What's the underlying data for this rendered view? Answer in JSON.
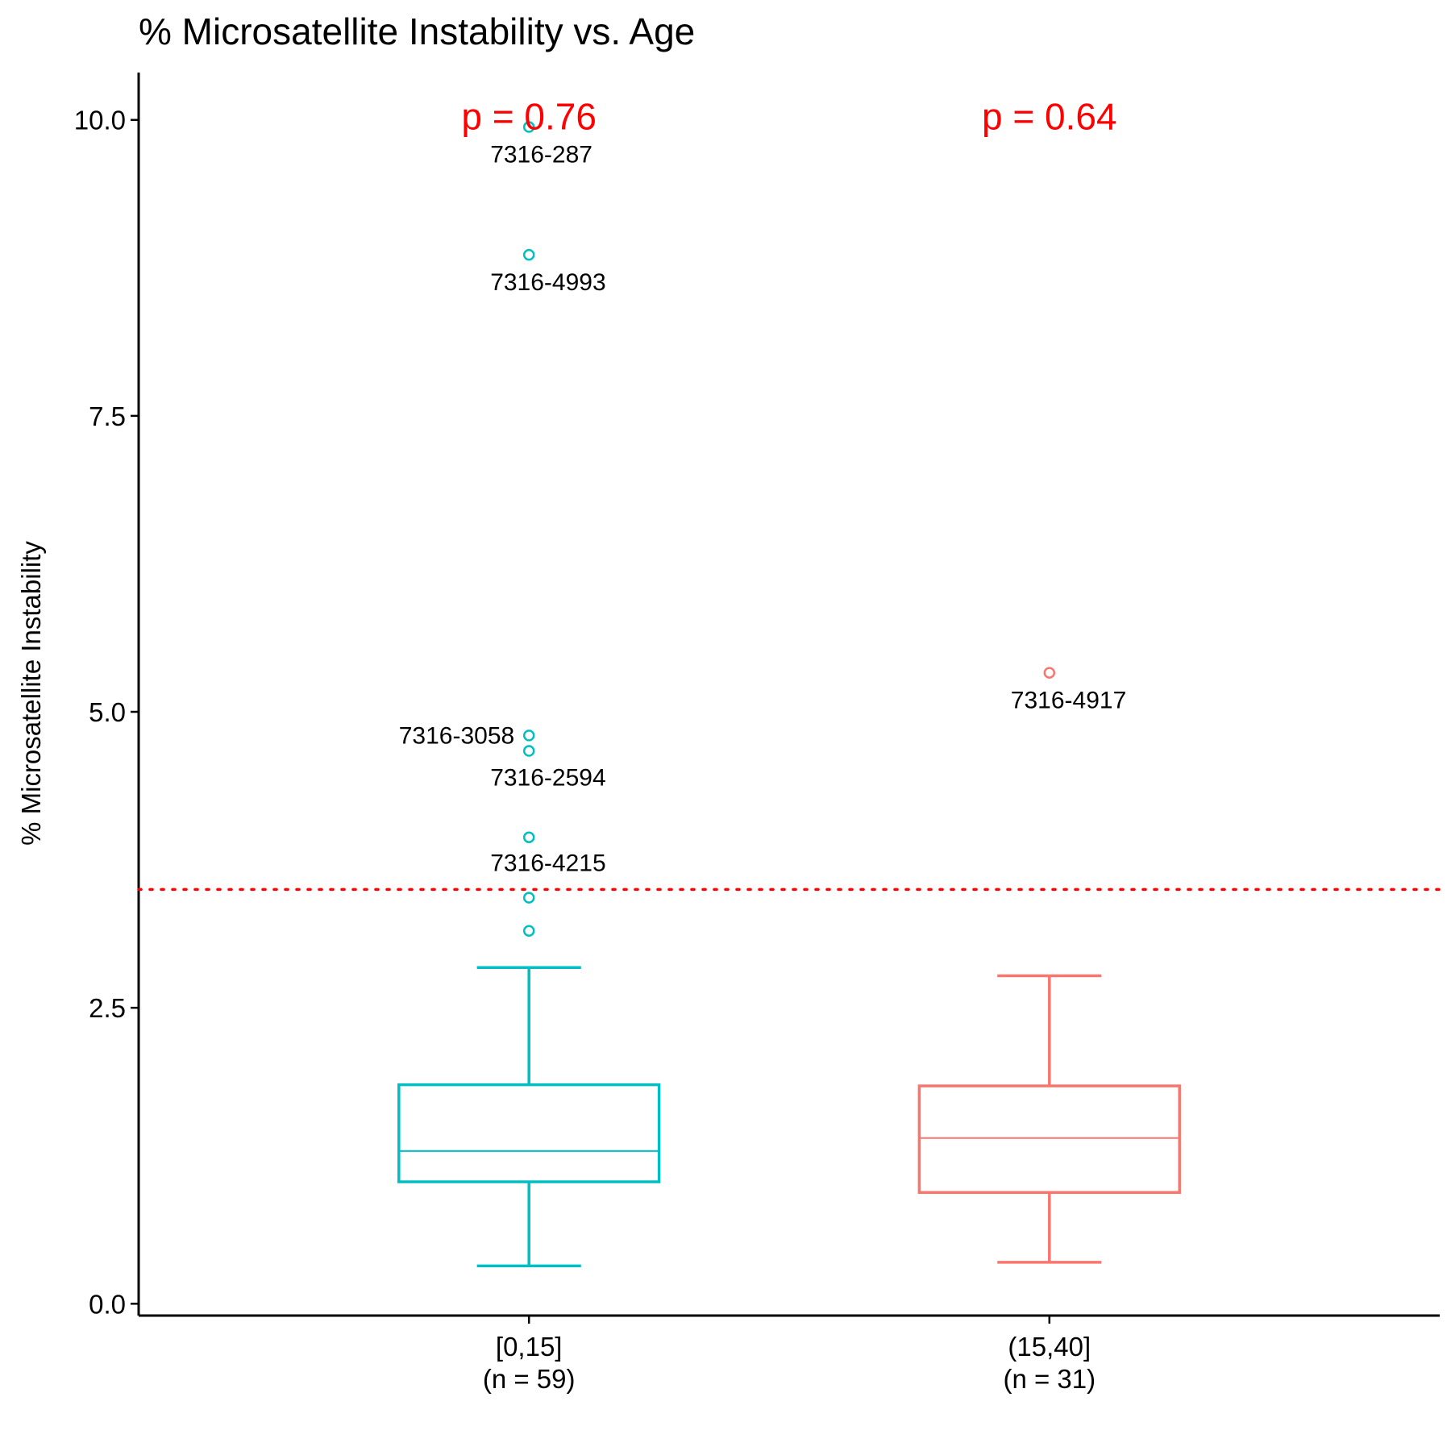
{
  "chart_data": {
    "type": "box",
    "title": "% Microsatellite Instability vs. Age",
    "xlabel": "",
    "ylabel": "% Microsatellite Instability",
    "ylim": [
      -0.1,
      10.4
    ],
    "yticks": [
      "0.0",
      "2.5",
      "5.0",
      "7.5",
      "10.0"
    ],
    "ytick_values": [
      0,
      2.5,
      5,
      7.5,
      10
    ],
    "grid": false,
    "legend": "none",
    "threshold": {
      "value": 3.5,
      "color": "#ff0000",
      "style": "dotted"
    },
    "groups": [
      {
        "category": "[0,15]",
        "count_label": "(n = 59)",
        "color": "#00bfc4",
        "whisker_low": 0.32,
        "q1": 1.03,
        "median": 1.29,
        "q3": 1.85,
        "whisker_high": 2.84,
        "p_label": "p = 0.76",
        "outliers": [
          {
            "y": 9.94,
            "label": "7316-287"
          },
          {
            "y": 8.86,
            "label": "7316-4993"
          },
          {
            "y": 4.8,
            "label": "7316-3058"
          },
          {
            "y": 4.67,
            "label": "7316-2594"
          },
          {
            "y": 3.94,
            "label": "7316-4215"
          },
          {
            "y": 3.43,
            "label": ""
          },
          {
            "y": 3.15,
            "label": ""
          }
        ]
      },
      {
        "category": "(15,40]",
        "count_label": "(n = 31)",
        "color": "#f8766d",
        "whisker_low": 0.35,
        "q1": 0.94,
        "median": 1.4,
        "q3": 1.84,
        "whisker_high": 2.77,
        "p_label": "p = 0.64",
        "outliers": [
          {
            "y": 5.33,
            "label": "7316-4917"
          }
        ]
      }
    ]
  }
}
